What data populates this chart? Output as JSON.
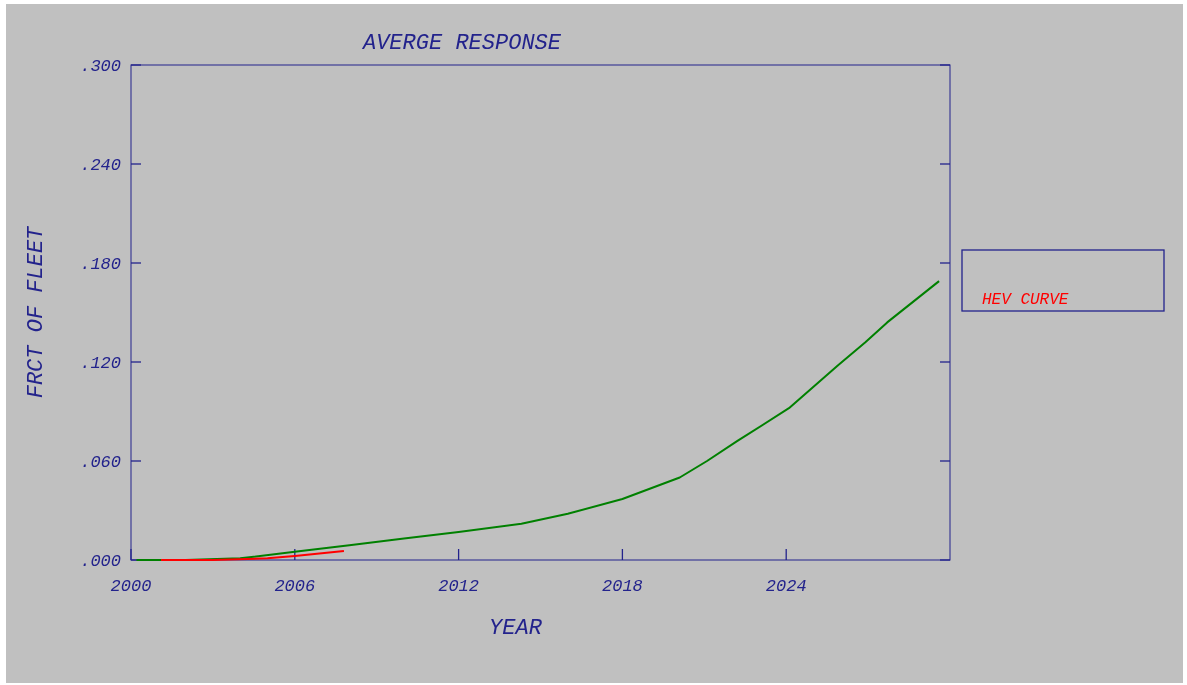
{
  "chart_data": {
    "type": "line",
    "title": "AVERGE RESPONSE",
    "xlabel": "YEAR",
    "ylabel": "FRCT OF FLEET",
    "xlim": [
      2000,
      2030
    ],
    "xticks": [
      2000,
      2006,
      2012,
      2018,
      2024
    ],
    "ylim": [
      0,
      0.3
    ],
    "yticks": [
      {
        "value": 0,
        "label": ".000"
      },
      {
        "value": 0.06,
        "label": ".060"
      },
      {
        "value": 0.12,
        "label": ".120"
      },
      {
        "value": 0.18,
        "label": ".180"
      },
      {
        "value": 0.24,
        "label": ".240"
      },
      {
        "value": 0.3,
        "label": ".300"
      }
    ],
    "legend": "right",
    "grid": false,
    "series": [
      {
        "color": "#008000",
        "x": [
          2000.2,
          2002,
          2004,
          2006,
          2008,
          2010,
          2012,
          2014.3,
          2016,
          2018,
          2020.1,
          2021.1,
          2022.2,
          2024.1,
          2025.9,
          2026.9,
          2027.7,
          2029.6
        ],
        "values": [
          0,
          0,
          0.001,
          0.005,
          0.009,
          0.013,
          0.017,
          0.022,
          0.028,
          0.037,
          0.05,
          0.06,
          0.072,
          0.092,
          0.118,
          0.132,
          0.144,
          0.169
        ]
      },
      {
        "name": "HEV CURVE",
        "color": "#ff0000",
        "x": [
          2001.1,
          2003,
          2005,
          2006,
          2007.8
        ],
        "values": [
          0,
          0,
          0.001,
          0.0024,
          0.0054
        ]
      }
    ]
  }
}
